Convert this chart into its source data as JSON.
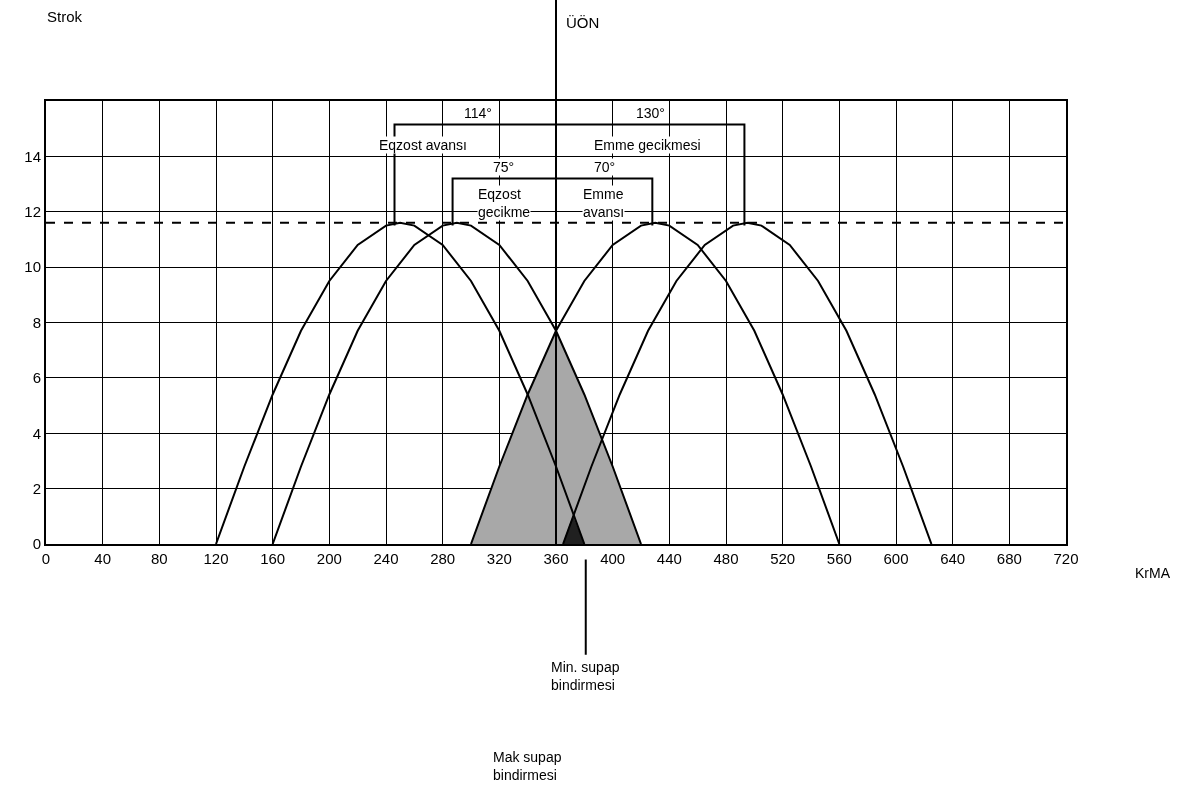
{
  "chart_data": {
    "type": "line",
    "xlabel": "KrMA",
    "xlim": [
      0,
      720
    ],
    "ylim": [
      0,
      16
    ],
    "xticks": [
      0,
      40,
      80,
      120,
      160,
      200,
      240,
      280,
      320,
      360,
      400,
      440,
      480,
      520,
      560,
      600,
      640,
      680,
      720
    ],
    "yticks": [
      0,
      2,
      4,
      6,
      8,
      10,
      12,
      14
    ],
    "grid": true,
    "marker": "none",
    "line_style": "solid",
    "series": [
      {
        "color": "#000000",
        "x": [
          120,
          140,
          160,
          180,
          200,
          220,
          240,
          250,
          260,
          280,
          300,
          320,
          340,
          360,
          380
        ],
        "values": [
          0,
          2.8,
          5.4,
          7.7,
          9.5,
          10.8,
          11.5,
          11.6,
          11.5,
          10.8,
          9.5,
          7.7,
          5.4,
          2.8,
          0
        ]
      },
      {
        "color": "#000000",
        "x": [
          160,
          180,
          200,
          220,
          240,
          260,
          280,
          290,
          300,
          320,
          340,
          360,
          380,
          400,
          420
        ],
        "values": [
          0,
          2.8,
          5.4,
          7.7,
          9.5,
          10.8,
          11.5,
          11.6,
          11.5,
          10.8,
          9.5,
          7.7,
          5.4,
          2.8,
          0
        ]
      },
      {
        "color": "#000000",
        "x": [
          300,
          320,
          340,
          360,
          380,
          400,
          420,
          430,
          440,
          460,
          480,
          500,
          520,
          540,
          560
        ],
        "values": [
          0,
          2.8,
          5.4,
          7.7,
          9.5,
          10.8,
          11.5,
          11.6,
          11.5,
          10.8,
          9.5,
          7.7,
          5.4,
          2.8,
          0
        ]
      },
      {
        "color": "#000000",
        "x": [
          365,
          385,
          405,
          425,
          445,
          465,
          485,
          495,
          505,
          525,
          545,
          565,
          585,
          605,
          625
        ],
        "values": [
          0,
          2.8,
          5.4,
          7.7,
          9.5,
          10.8,
          11.5,
          11.6,
          11.5,
          10.8,
          9.5,
          7.7,
          5.4,
          2.8,
          0
        ]
      },
      {
        "type": "area",
        "color": "#a8a8a8",
        "x": [
          300,
          320,
          340,
          360,
          380,
          400,
          420
        ],
        "values": [
          0,
          2.8,
          5.4,
          7.7,
          5.4,
          2.8,
          0
        ]
      },
      {
        "type": "area",
        "color": "#202020",
        "x": [
          365,
          372,
          380
        ],
        "values": [
          0,
          1.0,
          0
        ]
      },
      {
        "color": "#000000",
        "x": [
          246,
          246,
          493,
          493
        ],
        "values": [
          11.5,
          15.15,
          15.15,
          11.5
        ]
      },
      {
        "color": "#000000",
        "x": [
          287,
          287,
          428,
          428
        ],
        "values": [
          11.5,
          13.2,
          13.2,
          11.5
        ]
      }
    ],
    "ref_lines": [
      {
        "axis": "x",
        "value": 360,
        "label": "ÜÖN",
        "color": "#000000",
        "line_style": "solid"
      },
      {
        "axis": "y",
        "value": 11.6,
        "color": "#000000",
        "line_style": "dashed"
      }
    ],
    "annotations": [
      {
        "text": "114°",
        "x": 305,
        "y": 15.55
      },
      {
        "text": "130°",
        "x": 427,
        "y": 15.55
      },
      "Strok",
      "Eqzost avansı",
      "Emme gecikmesi",
      {
        "text": "75°",
        "x": 323,
        "y": 13.6
      },
      {
        "text": "70°",
        "x": 394,
        "y": 13.6
      },
      "Eqzost gecikme",
      "Emme avansı",
      {
        "text": "Min. supap bindirmesi",
        "x": 381
      },
      "Mak supap bindirmesi"
    ]
  }
}
